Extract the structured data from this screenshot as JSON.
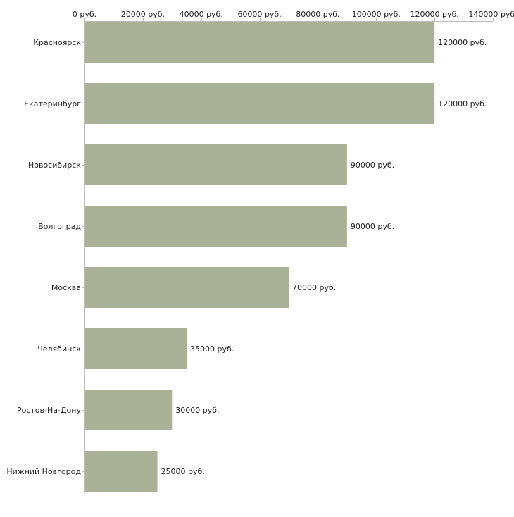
{
  "chart_data": {
    "type": "bar",
    "orientation": "horizontal",
    "title": "",
    "xlabel": "",
    "ylabel": "",
    "categories": [
      "Красноярск",
      "Екатеринбург",
      "Новосибирск",
      "Волгоград",
      "Москва",
      "Челябинск",
      "Ростов-На-Дону",
      "Нижний Новгород"
    ],
    "values": [
      120000,
      120000,
      90000,
      90000,
      70000,
      35000,
      30000,
      25000
    ],
    "value_labels": [
      "120000 руб.",
      "120000 руб.",
      "90000 руб.",
      "90000 руб.",
      "70000 руб.",
      "35000 руб.",
      "30000 руб.",
      "25000 руб."
    ],
    "xlim": [
      0,
      140000
    ],
    "ticks": [
      0,
      20000,
      40000,
      60000,
      80000,
      100000,
      120000,
      140000
    ],
    "tick_labels": [
      "0 руб.",
      "20000 руб.",
      "40000 руб.",
      "60000 руб.",
      "80000 руб.",
      "100000 руб.",
      "120000 руб.",
      "140000 руб."
    ],
    "axis_position": "top",
    "grid": false,
    "legend": "none",
    "colors": {
      "bar": "#abb196",
      "axis": "#bbbbbb",
      "text": "#222222"
    }
  }
}
